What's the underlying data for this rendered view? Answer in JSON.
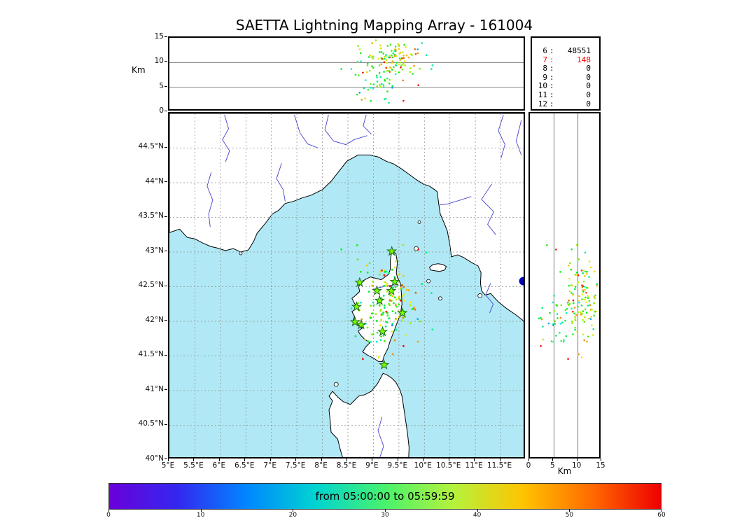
{
  "title": "SAETTA Lightning Mapping Array - 161004",
  "axes": {
    "alt_label": "Km"
  },
  "stats": {
    "rows": [
      {
        "k": "6",
        "v": "48551",
        "c": "#000000"
      },
      {
        "k": "7",
        "v": "148",
        "c": "#ff0000"
      },
      {
        "k": "8",
        "v": "0",
        "c": "#000000"
      },
      {
        "k": "9",
        "v": "0",
        "c": "#000000"
      },
      {
        "k": "10",
        "v": "0",
        "c": "#000000"
      },
      {
        "k": "11",
        "v": "0",
        "c": "#000000"
      },
      {
        "k": "12",
        "v": "0",
        "c": "#000000"
      }
    ]
  },
  "chart_data": {
    "type": "scatter",
    "title": "SAETTA Lightning Mapping Array - 161004",
    "panels": {
      "top": {
        "x": "longitude",
        "y": "altitude_km",
        "xlim": [
          5,
          12
        ],
        "ylim": [
          0,
          15
        ],
        "yticks": [
          0,
          5,
          10,
          15
        ],
        "ylabel": "Km"
      },
      "map": {
        "x": "longitude",
        "y": "latitude",
        "xlim": [
          5,
          12
        ],
        "ylim": [
          40,
          45
        ]
      },
      "right": {
        "x": "altitude_km",
        "y": "latitude",
        "xlim": [
          0,
          15
        ],
        "ylim": [
          40,
          45
        ],
        "xticks": [
          0,
          5,
          10,
          15
        ],
        "xlabel": "Km"
      }
    },
    "lon_ticks": [
      {
        "v": 5,
        "l": "5°E"
      },
      {
        "v": 5.5,
        "l": "5.5°E"
      },
      {
        "v": 6,
        "l": "6°E"
      },
      {
        "v": 6.5,
        "l": "6.5°E"
      },
      {
        "v": 7,
        "l": "7°E"
      },
      {
        "v": 7.5,
        "l": "7.5°E"
      },
      {
        "v": 8,
        "l": "8°E"
      },
      {
        "v": 8.5,
        "l": "8.5°E"
      },
      {
        "v": 9,
        "l": "9°E"
      },
      {
        "v": 9.5,
        "l": "9.5°E"
      },
      {
        "v": 10,
        "l": "10°E"
      },
      {
        "v": 10.5,
        "l": "10.5°E"
      },
      {
        "v": 11,
        "l": "11°E"
      },
      {
        "v": 11.5,
        "l": "11.5°E"
      }
    ],
    "lat_ticks": [
      {
        "v": 44.5,
        "l": "44.5°N"
      },
      {
        "v": 44,
        "l": "44°N"
      },
      {
        "v": 43.5,
        "l": "43.5°N"
      },
      {
        "v": 43,
        "l": "43°N"
      },
      {
        "v": 42.5,
        "l": "42.5°N"
      },
      {
        "v": 42,
        "l": "42°N"
      },
      {
        "v": 41.5,
        "l": "41.5°N"
      },
      {
        "v": 41,
        "l": "41°N"
      },
      {
        "v": 40.5,
        "l": "40.5°N"
      },
      {
        "v": 40,
        "l": "40°N"
      }
    ],
    "station_counts": [
      {
        "min_stations": 6,
        "sources": 48551
      },
      {
        "min_stations": 7,
        "sources": 148
      },
      {
        "min_stations": 8,
        "sources": 0
      },
      {
        "min_stations": 9,
        "sources": 0
      },
      {
        "min_stations": 10,
        "sources": 0
      },
      {
        "min_stations": 11,
        "sources": 0
      },
      {
        "min_stations": 12,
        "sources": 0
      }
    ],
    "colorbar": {
      "label": "from 05:00:00 to 05:59:59",
      "min": 0,
      "max": 60,
      "ticks": [
        0,
        10,
        20,
        30,
        40,
        50,
        60
      ],
      "stops": [
        "#6a00d9",
        "#3328f0",
        "#0087ff",
        "#00d4d0",
        "#49f26c",
        "#b6f23c",
        "#ffc400",
        "#ff6a00",
        "#ee0000"
      ]
    },
    "colors": {
      "sea": "#b0e9f5",
      "land": "#ffffff",
      "coast": "#000000",
      "river": "#4444cc",
      "grid": "#909090",
      "panel_grid": "#444444",
      "star_fill": "#7CFC00",
      "star_stroke": "#1a6b1a"
    },
    "stations": [
      [
        9.36,
        43.01
      ],
      [
        8.73,
        42.56
      ],
      [
        9.07,
        42.44
      ],
      [
        9.35,
        42.44
      ],
      [
        9.42,
        42.57
      ],
      [
        9.12,
        42.3
      ],
      [
        8.67,
        42.21
      ],
      [
        9.57,
        42.12
      ],
      [
        8.64,
        41.99
      ],
      [
        8.76,
        41.95
      ],
      [
        9.18,
        41.85
      ],
      [
        9.21,
        41.37
      ]
    ],
    "extra_marker": {
      "lon": 11.94,
      "lat": 42.58,
      "r": 6,
      "color": "#0000bb"
    },
    "scatter_seed": 161004,
    "scatter_clusters": [
      {
        "n": 110,
        "dist": "gauss",
        "lon": [
          9.35,
          0.28
        ],
        "lat": [
          42.3,
          0.3
        ],
        "alt": [
          10.5,
          2.2
        ],
        "t": [
          44,
          9
        ]
      },
      {
        "n": 35,
        "dist": "gauss",
        "lon": [
          9.05,
          0.18
        ],
        "lat": [
          42.05,
          0.18
        ],
        "alt": [
          6.5,
          2.0
        ],
        "t": [
          32,
          7
        ]
      },
      {
        "n": 15,
        "dist": "uniform",
        "lon": [
          8.3,
          10.4
        ],
        "lat": [
          41.4,
          43.1
        ],
        "alt": [
          1,
          14
        ],
        "t": [
          10,
          60
        ]
      }
    ],
    "geo": {
      "mainland": [
        [
          5.0,
          43.28
        ],
        [
          5.2,
          43.33
        ],
        [
          5.35,
          43.21
        ],
        [
          5.5,
          43.19
        ],
        [
          5.65,
          43.13
        ],
        [
          5.81,
          43.08
        ],
        [
          5.93,
          43.06
        ],
        [
          6.1,
          43.02
        ],
        [
          6.25,
          43.05
        ],
        [
          6.4,
          43.0
        ],
        [
          6.55,
          43.03
        ],
        [
          6.65,
          43.15
        ],
        [
          6.72,
          43.27
        ],
        [
          6.9,
          43.43
        ],
        [
          7.02,
          43.55
        ],
        [
          7.14,
          43.6
        ],
        [
          7.27,
          43.7
        ],
        [
          7.43,
          43.73
        ],
        [
          7.6,
          43.78
        ],
        [
          7.78,
          43.82
        ],
        [
          8.0,
          43.9
        ],
        [
          8.17,
          44.02
        ],
        [
          8.3,
          44.14
        ],
        [
          8.48,
          44.31
        ],
        [
          8.7,
          44.4
        ],
        [
          8.93,
          44.4
        ],
        [
          9.1,
          44.37
        ],
        [
          9.25,
          44.31
        ],
        [
          9.4,
          44.27
        ],
        [
          9.55,
          44.2
        ],
        [
          9.72,
          44.11
        ],
        [
          9.83,
          44.05
        ],
        [
          9.98,
          43.98
        ],
        [
          10.1,
          43.95
        ],
        [
          10.2,
          43.9
        ],
        [
          10.25,
          43.87
        ],
        [
          10.28,
          43.7
        ],
        [
          10.31,
          43.55
        ],
        [
          10.38,
          43.43
        ],
        [
          10.45,
          43.3
        ],
        [
          10.5,
          43.1
        ],
        [
          10.53,
          42.93
        ],
        [
          10.65,
          42.96
        ],
        [
          10.77,
          42.92
        ],
        [
          10.92,
          42.85
        ],
        [
          11.05,
          42.8
        ],
        [
          11.11,
          42.7
        ],
        [
          11.1,
          42.55
        ],
        [
          11.12,
          42.44
        ],
        [
          11.19,
          42.38
        ],
        [
          11.3,
          42.4
        ],
        [
          11.45,
          42.28
        ],
        [
          11.62,
          42.18
        ],
        [
          11.78,
          42.1
        ],
        [
          11.92,
          42.02
        ],
        [
          12.0,
          41.95
        ],
        [
          12.0,
          45.0
        ],
        [
          5.0,
          45.0
        ]
      ],
      "corsica": [
        [
          9.36,
          43.01
        ],
        [
          9.44,
          42.98
        ],
        [
          9.47,
          42.85
        ],
        [
          9.45,
          42.7
        ],
        [
          9.47,
          42.63
        ],
        [
          9.53,
          42.55
        ],
        [
          9.55,
          42.4
        ],
        [
          9.56,
          42.25
        ],
        [
          9.53,
          42.1
        ],
        [
          9.45,
          41.95
        ],
        [
          9.4,
          41.85
        ],
        [
          9.33,
          41.72
        ],
        [
          9.28,
          41.6
        ],
        [
          9.21,
          41.5
        ],
        [
          9.18,
          41.42
        ],
        [
          9.1,
          41.42
        ],
        [
          9.0,
          41.47
        ],
        [
          8.89,
          41.51
        ],
        [
          8.79,
          41.56
        ],
        [
          8.85,
          41.63
        ],
        [
          8.93,
          41.69
        ],
        [
          8.83,
          41.74
        ],
        [
          8.75,
          41.8
        ],
        [
          8.7,
          41.86
        ],
        [
          8.78,
          41.9
        ],
        [
          8.66,
          41.96
        ],
        [
          8.6,
          42.0
        ],
        [
          8.63,
          42.07
        ],
        [
          8.58,
          42.14
        ],
        [
          8.68,
          42.19
        ],
        [
          8.63,
          42.26
        ],
        [
          8.58,
          42.33
        ],
        [
          8.66,
          42.38
        ],
        [
          8.73,
          42.43
        ],
        [
          8.71,
          42.5
        ],
        [
          8.76,
          42.57
        ],
        [
          8.86,
          42.61
        ],
        [
          8.94,
          42.64
        ],
        [
          9.05,
          42.62
        ],
        [
          9.15,
          42.6
        ],
        [
          9.23,
          42.64
        ],
        [
          9.3,
          42.68
        ],
        [
          9.33,
          42.75
        ],
        [
          9.33,
          42.88
        ]
      ],
      "sardinia": [
        [
          8.41,
          40.0
        ],
        [
          8.35,
          40.15
        ],
        [
          8.3,
          40.3
        ],
        [
          8.17,
          40.4
        ],
        [
          8.15,
          40.58
        ],
        [
          8.13,
          40.72
        ],
        [
          8.2,
          40.85
        ],
        [
          8.13,
          40.92
        ],
        [
          8.2,
          40.99
        ],
        [
          8.31,
          40.9
        ],
        [
          8.41,
          40.84
        ],
        [
          8.55,
          40.8
        ],
        [
          8.71,
          40.92
        ],
        [
          8.83,
          40.94
        ],
        [
          8.96,
          40.99
        ],
        [
          9.08,
          41.1
        ],
        [
          9.14,
          41.18
        ],
        [
          9.19,
          41.25
        ],
        [
          9.28,
          41.22
        ],
        [
          9.36,
          41.18
        ],
        [
          9.44,
          41.12
        ],
        [
          9.52,
          41.01
        ],
        [
          9.56,
          40.92
        ],
        [
          9.59,
          40.78
        ],
        [
          9.63,
          40.58
        ],
        [
          9.67,
          40.38
        ],
        [
          9.7,
          40.18
        ],
        [
          9.69,
          40.0
        ]
      ],
      "elba": [
        [
          10.1,
          42.78
        ],
        [
          10.17,
          42.82
        ],
        [
          10.27,
          42.83
        ],
        [
          10.36,
          42.82
        ],
        [
          10.43,
          42.79
        ],
        [
          10.4,
          42.74
        ],
        [
          10.3,
          42.72
        ],
        [
          10.2,
          42.73
        ],
        [
          10.12,
          42.74
        ]
      ],
      "islands": [
        [
          9.84,
          43.05,
          3
        ],
        [
          9.9,
          43.43,
          2
        ],
        [
          10.08,
          42.58,
          2.5
        ],
        [
          10.31,
          42.33,
          2.5
        ],
        [
          11.09,
          42.37,
          3
        ],
        [
          8.27,
          41.09,
          3
        ],
        [
          6.4,
          42.98,
          2
        ]
      ],
      "rivers": [
        [
          [
            5.82,
            44.15
          ],
          [
            5.74,
            43.95
          ],
          [
            5.85,
            43.75
          ],
          [
            5.77,
            43.55
          ],
          [
            5.8,
            43.36
          ]
        ],
        [
          [
            6.08,
            44.98
          ],
          [
            6.16,
            44.78
          ],
          [
            6.04,
            44.62
          ],
          [
            6.18,
            44.46
          ],
          [
            6.1,
            44.3
          ]
        ],
        [
          [
            7.45,
            44.98
          ],
          [
            7.56,
            44.72
          ],
          [
            7.71,
            44.56
          ],
          [
            7.92,
            44.5
          ]
        ],
        [
          [
            8.12,
            44.98
          ],
          [
            8.05,
            44.76
          ],
          [
            8.22,
            44.6
          ],
          [
            8.46,
            44.55
          ],
          [
            8.62,
            44.62
          ],
          [
            8.88,
            44.68
          ]
        ],
        [
          [
            8.86,
            44.98
          ],
          [
            8.8,
            44.82
          ],
          [
            8.96,
            44.7
          ]
        ],
        [
          [
            7.2,
            44.28
          ],
          [
            7.1,
            44.06
          ],
          [
            7.23,
            43.9
          ],
          [
            7.27,
            43.73
          ]
        ],
        [
          [
            11.32,
            43.98
          ],
          [
            11.12,
            43.76
          ],
          [
            11.36,
            43.58
          ],
          [
            11.24,
            43.4
          ],
          [
            11.4,
            43.25
          ]
        ],
        [
          [
            10.92,
            43.8
          ],
          [
            10.62,
            43.73
          ],
          [
            10.44,
            43.69
          ],
          [
            10.3,
            43.68
          ]
        ],
        [
          [
            11.55,
            44.98
          ],
          [
            11.45,
            44.75
          ],
          [
            11.58,
            44.55
          ],
          [
            11.5,
            44.35
          ]
        ],
        [
          [
            11.9,
            44.9
          ],
          [
            11.8,
            44.6
          ],
          [
            11.9,
            44.4
          ]
        ],
        [
          [
            9.17,
            40.62
          ],
          [
            9.09,
            40.42
          ],
          [
            9.2,
            40.2
          ],
          [
            9.12,
            40.02
          ]
        ],
        [
          [
            9.02,
            42.47
          ],
          [
            9.25,
            42.51
          ],
          [
            9.49,
            42.53
          ]
        ],
        [
          [
            11.3,
            42.55
          ],
          [
            11.2,
            42.38
          ],
          [
            11.35,
            42.25
          ],
          [
            11.28,
            42.12
          ]
        ]
      ]
    }
  }
}
